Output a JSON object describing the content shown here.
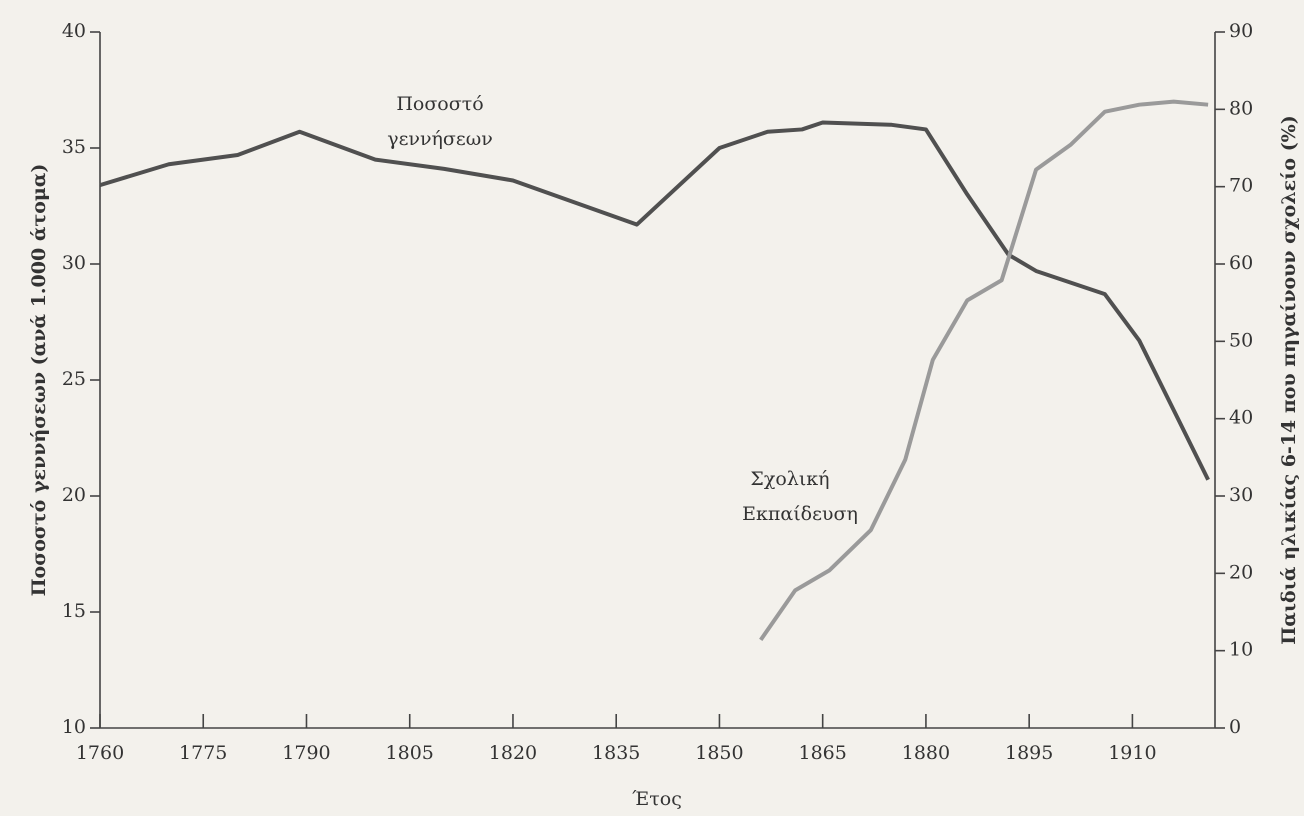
{
  "chart_data": {
    "type": "line",
    "xlabel": "Έτος",
    "ylabel": "Ποσοστό γεννήσεων (ανά 1.000 άτομα)",
    "y2label": "Παιδιά ηλικίας 6-14 που πηγαίνουν σχολείο (%)",
    "xlim": [
      1760,
      1922
    ],
    "xticks": [
      1760,
      1775,
      1790,
      1805,
      1820,
      1835,
      1850,
      1865,
      1880,
      1895,
      1910
    ],
    "ylim": [
      10,
      40
    ],
    "yticks": [
      10,
      15,
      20,
      25,
      30,
      35,
      40
    ],
    "y2lim": [
      0,
      90
    ],
    "y2ticks": [
      0,
      10,
      20,
      30,
      40,
      50,
      60,
      70,
      80,
      90
    ],
    "series": [
      {
        "name": "Ποσοστό γεννήσεων",
        "color": "#505050",
        "axis": "y",
        "x": [
          1760,
          1770,
          1780,
          1789,
          1800,
          1810,
          1820,
          1838,
          1850,
          1857,
          1862,
          1865,
          1875,
          1880,
          1886,
          1892,
          1896,
          1906,
          1911,
          1916,
          1921
        ],
        "values": [
          33.4,
          34.3,
          34.7,
          35.7,
          34.5,
          34.1,
          33.6,
          31.7,
          35.0,
          35.7,
          35.8,
          36.1,
          36.0,
          35.8,
          33.0,
          30.4,
          29.7,
          28.7,
          26.7,
          23.7,
          20.7
        ]
      },
      {
        "name": "Σχολική Εκπαίδευση",
        "color": "#9a9a9a",
        "axis": "y2",
        "x": [
          1856,
          1861,
          1866,
          1872,
          1877,
          1881,
          1886,
          1891,
          1896,
          1901,
          1906,
          1911,
          1916,
          1921
        ],
        "values": [
          11.4,
          17.8,
          20.4,
          25.6,
          34.7,
          47.6,
          55.3,
          57.9,
          72.2,
          75.4,
          79.7,
          80.6,
          81.0,
          80.6
        ]
      }
    ],
    "annotations": [
      {
        "lines": [
          "Ποσοστό",
          "γεννήσεων"
        ]
      },
      {
        "lines": [
          "Σχολική",
          "Εκπαίδευση"
        ]
      }
    ]
  }
}
